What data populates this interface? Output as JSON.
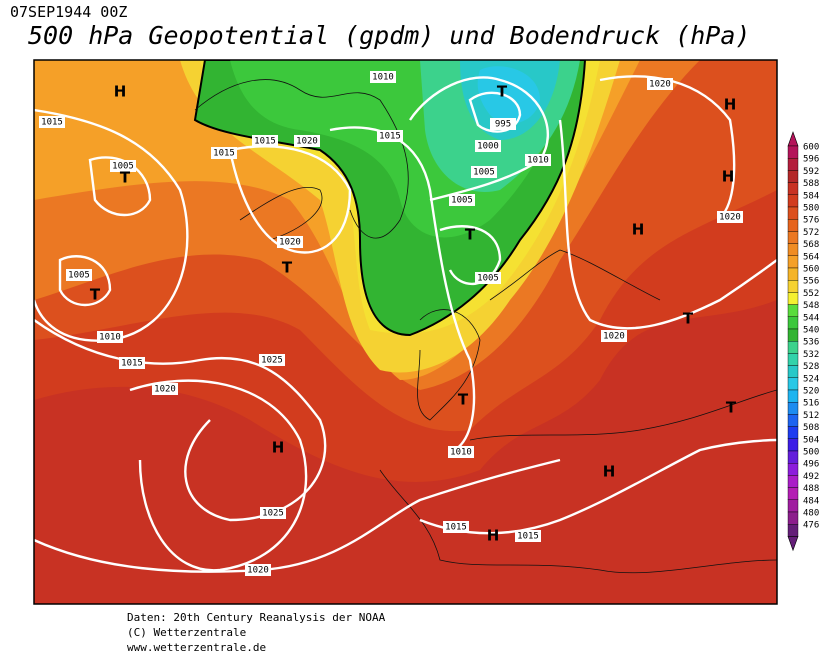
{
  "header": {
    "date": "07SEP1944 00Z",
    "title": "500 hPa Geopotential (gpdm) und Bodendruck (hPa)"
  },
  "legend": {
    "levels": [
      600,
      596,
      592,
      588,
      584,
      580,
      576,
      572,
      568,
      564,
      560,
      556,
      552,
      548,
      544,
      540,
      536,
      532,
      528,
      524,
      520,
      516,
      512,
      508,
      504,
      500,
      496,
      492,
      488,
      484,
      480,
      476
    ],
    "colors": [
      "#b4145a",
      "#b41e3c",
      "#b42828",
      "#c83223",
      "#d23c1e",
      "#dc501e",
      "#e6641e",
      "#eb7823",
      "#f08c23",
      "#f5a028",
      "#f5b428",
      "#f5d232",
      "#f5f032",
      "#5adc3c",
      "#3cc83c",
      "#32b432",
      "#3cd28c",
      "#32d2aa",
      "#28c8c8",
      "#28c8e6",
      "#1eb4f0",
      "#1e8cf0",
      "#1e64f0",
      "#1e3cf0",
      "#3c1ee6",
      "#641edc",
      "#8c1edc",
      "#aa1ec8",
      "#b41eb4",
      "#a01ea0",
      "#8c1e8c",
      "#641e78"
    ]
  },
  "isobar_labels": [
    "1010",
    "1015",
    "1015",
    "1015",
    "1020",
    "1015",
    "995",
    "1000",
    "1010",
    "1005",
    "1005",
    "1005",
    "1020",
    "1005",
    "1005",
    "1010",
    "1015",
    "1020",
    "1025",
    "1020",
    "1020",
    "1020",
    "1010",
    "1025",
    "1015",
    "1015",
    "1020"
  ],
  "centers": [
    "H",
    "T",
    "T",
    "T",
    "H",
    "T",
    "T",
    "T",
    "H",
    "H",
    "H",
    "T",
    "T",
    "H",
    "H"
  ],
  "footer": [
    "Daten: 20th Century Reanalysis der NOAA",
    "(C) Wetterzentrale",
    "www.wetterzentrale.de"
  ]
}
